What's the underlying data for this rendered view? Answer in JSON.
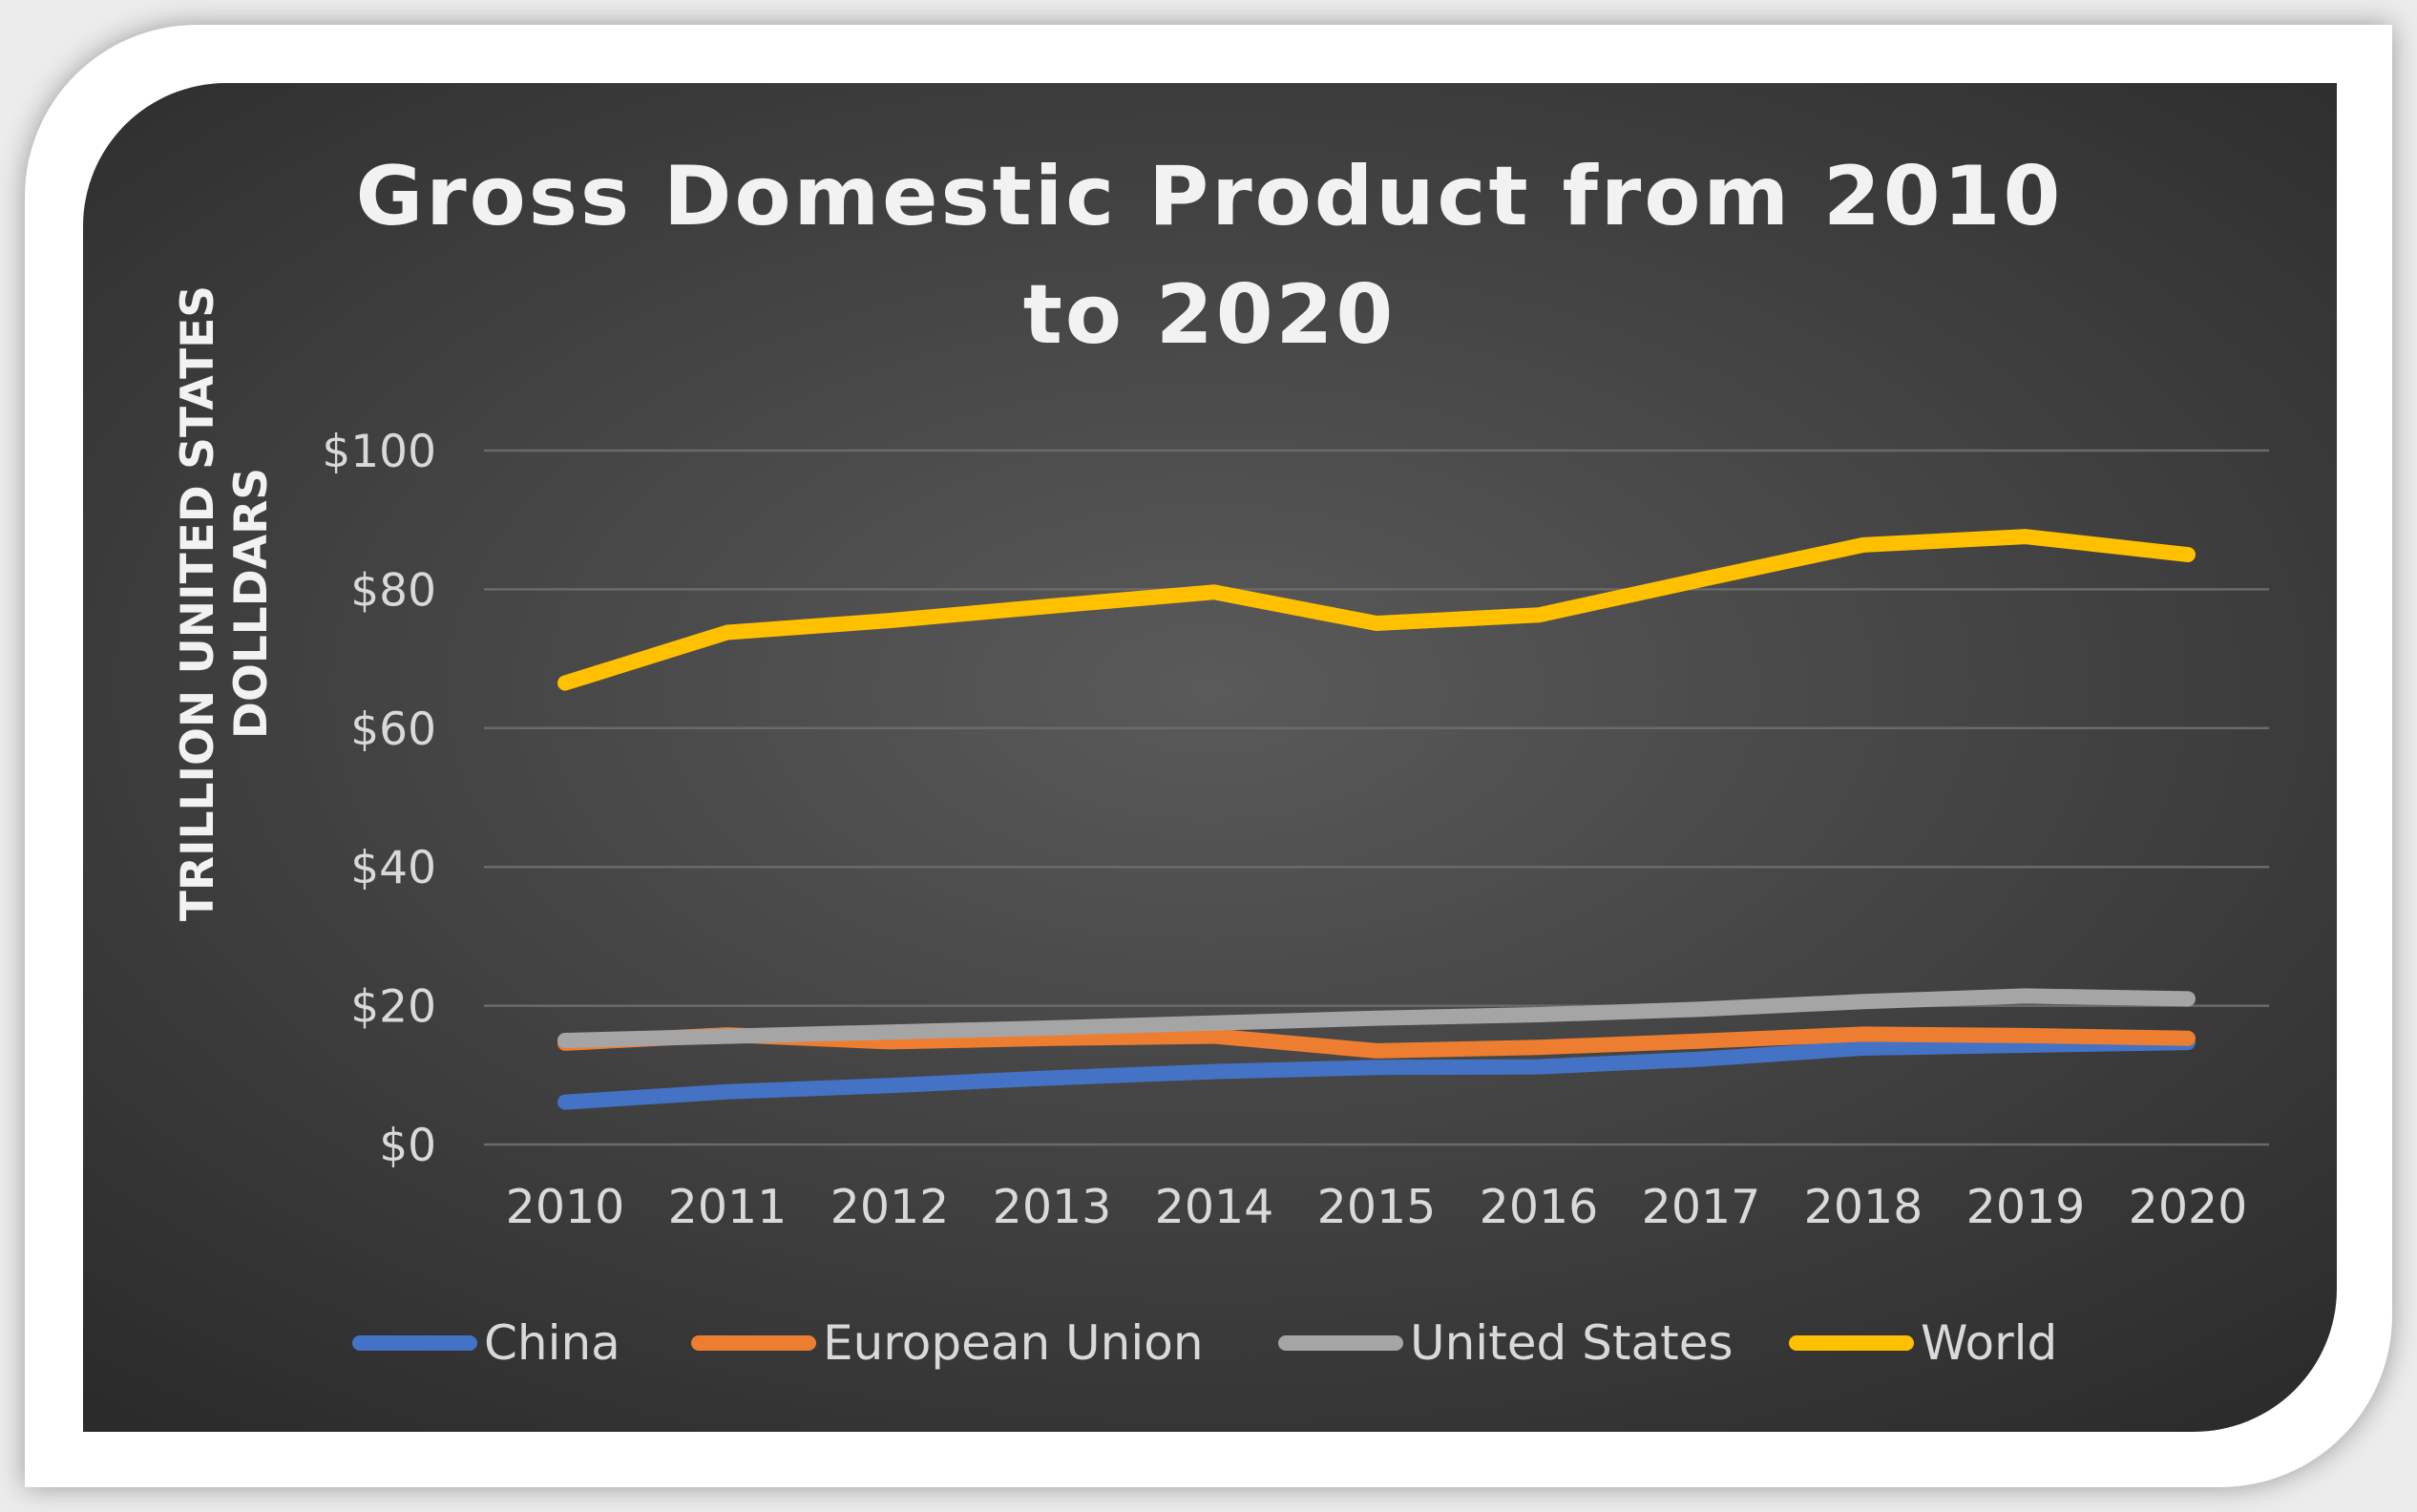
{
  "chart_data": {
    "type": "line",
    "title": "Gross Domestic Product from 2010 to 2020",
    "title_lines": [
      "Gross Domestic Product from 2010",
      "to 2020"
    ],
    "ylabel_lines": [
      "TRILLION UNITED STATES",
      "DOLLDARS"
    ],
    "xlabel": "",
    "categories": [
      "2010",
      "2011",
      "2012",
      "2013",
      "2014",
      "2015",
      "2016",
      "2017",
      "2018",
      "2019",
      "2020"
    ],
    "ylim": [
      0,
      100
    ],
    "yticks": [
      0,
      20,
      40,
      60,
      80,
      100
    ],
    "ytick_labels": [
      "$0",
      "$20",
      "$40",
      "$60",
      "$80",
      "$100"
    ],
    "grid": true,
    "legend_position": "bottom",
    "series": [
      {
        "name": "China",
        "color": "#4472c4",
        "values": [
          6.1,
          7.6,
          8.5,
          9.6,
          10.5,
          11.1,
          11.2,
          12.3,
          13.9,
          14.3,
          14.7
        ]
      },
      {
        "name": "European Union",
        "color": "#ed7d31",
        "values": [
          14.6,
          15.8,
          14.8,
          15.3,
          15.6,
          13.5,
          14.0,
          14.9,
          15.9,
          15.7,
          15.3
        ]
      },
      {
        "name": "United States",
        "color": "#a5a5a5",
        "values": [
          15.0,
          15.6,
          16.2,
          16.8,
          17.5,
          18.2,
          18.7,
          19.5,
          20.6,
          21.4,
          21.0
        ]
      },
      {
        "name": "World",
        "color": "#ffc000",
        "values": [
          66.5,
          73.8,
          75.5,
          77.6,
          79.6,
          75.1,
          76.3,
          81.4,
          86.4,
          87.6,
          85.0
        ]
      }
    ]
  }
}
